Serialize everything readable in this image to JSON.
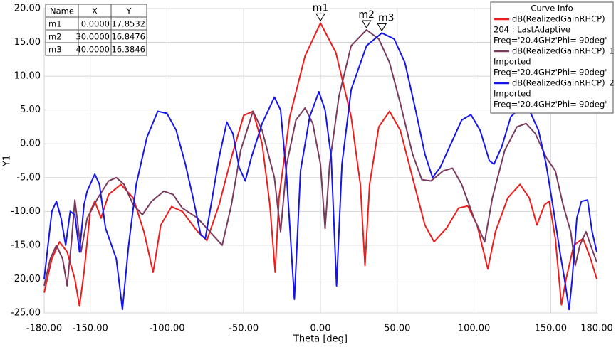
{
  "chart_data": {
    "type": "line",
    "xlabel": "Theta [deg]",
    "ylabel": "Y1",
    "xlim": [
      -180,
      180
    ],
    "xticks": [
      {
        "value": -180,
        "label": "-180.00"
      },
      {
        "value": -150,
        "label": "-150.00"
      },
      {
        "value": -100,
        "label": "-100.00"
      },
      {
        "value": -50,
        "label": "-50.00"
      },
      {
        "value": 0,
        "label": "0.00"
      },
      {
        "value": 50,
        "label": "50.00"
      },
      {
        "value": 100,
        "label": "100.00"
      },
      {
        "value": 150,
        "label": "150.00"
      },
      {
        "value": 180,
        "label": "180.00"
      }
    ],
    "ylim": [
      -25,
      20
    ],
    "yticks": [
      {
        "value": -25,
        "label": "-25.00"
      },
      {
        "value": -20,
        "label": "-20.00"
      },
      {
        "value": -15,
        "label": "-15.00"
      },
      {
        "value": -10,
        "label": "-10.00"
      },
      {
        "value": -5,
        "label": "-5.00"
      },
      {
        "value": 0,
        "label": "0.00"
      },
      {
        "value": 5,
        "label": "5.00"
      },
      {
        "value": 10,
        "label": "10.00"
      },
      {
        "value": 15,
        "label": "15.00"
      },
      {
        "value": 20,
        "label": "20.00"
      }
    ],
    "grid": true,
    "legend_title": "Curve Info",
    "series": [
      {
        "name": "dB(RealizedGainRHCP)",
        "info": [
          "204 : LastAdaptive",
          "Freq='20.4GHz'Phi='90deg'"
        ],
        "color": "#ee1c1c",
        "x": [
          -180,
          -175,
          -170,
          -165,
          -160,
          -157,
          -154,
          -150,
          -147,
          -143,
          -138,
          -130,
          -122,
          -115,
          -109,
          -104,
          -97,
          -90,
          -80,
          -74,
          -66,
          -58,
          -50,
          -44,
          -38,
          -33,
          -29.5,
          -27,
          -20,
          -10,
          0,
          10,
          20,
          26,
          29,
          32,
          38,
          45,
          52,
          60,
          68,
          74,
          82,
          90,
          96,
          102,
          109,
          114,
          122,
          130,
          136,
          141,
          146,
          149,
          153,
          157,
          160,
          165,
          171,
          176,
          180
        ],
        "values": [
          -22,
          -17,
          -14.5,
          -16,
          -20,
          -24,
          -19,
          -10,
          -8.5,
          -11,
          -7.5,
          -6,
          -8,
          -13,
          -19,
          -12,
          -9.3,
          -10,
          -13,
          -14.3,
          -9,
          -2,
          4.2,
          4.8,
          0,
          -9,
          -19,
          -8,
          4,
          13,
          17.85,
          13.5,
          4,
          -6,
          -18,
          -6,
          2.5,
          4.8,
          2,
          -5,
          -12,
          -14.5,
          -12.5,
          -9.5,
          -9.2,
          -12,
          -18.5,
          -13,
          -8,
          -6,
          -8,
          -12,
          -9,
          -8.5,
          -14,
          -23.8,
          -20,
          -15,
          -14,
          -17,
          -20
        ]
      },
      {
        "name": "dB(RealizedGainRHCP)_1",
        "info": [
          "Imported",
          "Freq='20.4GHz'Phi='90deg'"
        ],
        "color": "#7a3a5e",
        "x": [
          -180,
          -176,
          -172,
          -168,
          -165,
          -162,
          -160,
          -158,
          -156,
          -152,
          -145,
          -138,
          -133,
          -128,
          -122,
          -116,
          -110,
          -102,
          -96,
          -90,
          -80,
          -72,
          -64,
          -58,
          -52,
          -44,
          -38,
          -30,
          -26,
          -22,
          -16,
          -10,
          -5,
          0,
          3,
          6,
          12,
          20,
          30,
          38,
          45,
          52,
          60,
          66,
          72,
          80,
          86,
          92,
          100,
          107,
          112,
          120,
          128,
          134,
          140,
          147,
          153,
          158,
          163,
          166,
          169,
          173,
          176,
          180
        ],
        "values": [
          -21,
          -17,
          -15,
          -17,
          -21,
          -14,
          -8.3,
          -12,
          -16,
          -11,
          -8,
          -5.5,
          -5,
          -6,
          -9,
          -10.5,
          -8.5,
          -7,
          -7.5,
          -9.5,
          -11,
          -13,
          -15,
          -9,
          -1,
          4.8,
          2,
          -5,
          -13,
          -3,
          3.5,
          5.3,
          3,
          -3,
          -12.5,
          -3,
          7,
          14.5,
          16.85,
          15.5,
          12,
          6,
          -1.5,
          -5.3,
          -5.5,
          -4,
          -3.6,
          -6,
          -11,
          -14.5,
          -8,
          -1,
          2.5,
          3,
          1.5,
          -2,
          -4,
          -9,
          -13,
          -18,
          -15,
          -13,
          -15,
          -17.5
        ]
      },
      {
        "name": "dB(RealizedGainRHCP)_2",
        "info": [
          "Imported",
          "Freq='20.4GHz'Phi='90deg'"
        ],
        "color": "#1414ee",
        "x": [
          -180,
          -175,
          -172,
          -169,
          -166,
          -163,
          -160,
          -157,
          -154,
          -152,
          -147,
          -144,
          -140,
          -133,
          -129,
          -125,
          -120,
          -113,
          -106,
          -100,
          -94,
          -88,
          -83,
          -78,
          -75,
          -72,
          -66,
          -61,
          -57,
          -53,
          -49,
          -45,
          -38,
          -30,
          -26,
          -22,
          -17,
          -13,
          -7,
          -1,
          3,
          7,
          10.5,
          14,
          20,
          30,
          40,
          48,
          55,
          62,
          68,
          73,
          78,
          85,
          92,
          98,
          104,
          110,
          113,
          118,
          124,
          130,
          136,
          142,
          147,
          152,
          156,
          159,
          162,
          164,
          167,
          170,
          174,
          177,
          180
        ],
        "values": [
          -20,
          -10,
          -8.5,
          -11,
          -15,
          -10,
          -10.5,
          -16,
          -9,
          -7,
          -4.5,
          -6,
          -12.5,
          -17,
          -24.5,
          -15,
          -6,
          1,
          4.8,
          4.5,
          2,
          -3,
          -8,
          -13.5,
          -14,
          -10,
          -2,
          3.2,
          1.5,
          -3.5,
          -5.5,
          -2,
          3,
          6.9,
          5,
          -5,
          -23,
          -4,
          4,
          7.7,
          5,
          -2,
          -21,
          -3,
          8,
          14.5,
          16.38,
          15.5,
          12,
          5,
          -1.5,
          -5,
          -3.5,
          0,
          3.5,
          4.3,
          2,
          -2.5,
          -3,
          -0.5,
          4,
          5.3,
          5,
          2,
          -3,
          -10,
          -16,
          -20,
          -24.5,
          -20,
          -11,
          -8.5,
          -8.3,
          -13,
          -16
        ]
      }
    ],
    "marker_table": {
      "header": [
        "Name",
        "X",
        "Y"
      ],
      "markers": [
        {
          "name": "m1",
          "x": {
            "value": 0,
            "label": "0.0000"
          },
          "y": 17.8532
        },
        {
          "name": "m2",
          "x": {
            "value": 30,
            "label": "30.0000"
          },
          "y": 16.8476
        },
        {
          "name": "m3",
          "x": {
            "value": 40,
            "label": "40.0000"
          },
          "y": 16.3846
        }
      ]
    }
  }
}
